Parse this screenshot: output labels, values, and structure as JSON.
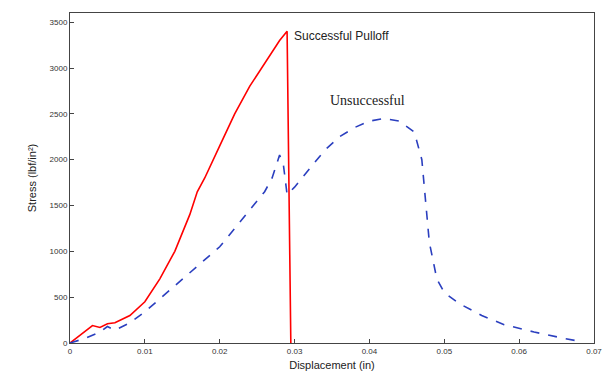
{
  "chart_data": {
    "type": "line",
    "x_label": "Displacement (in)",
    "y_label": "Stress (lbf/in²)",
    "xlim": [
      0,
      0.07
    ],
    "xticks": [
      0,
      0.01,
      0.02,
      0.03,
      0.04,
      0.05,
      0.06,
      0.07
    ],
    "ylim": [
      0,
      3600
    ],
    "yticks": [
      0,
      500,
      1000,
      1500,
      2000,
      2500,
      3000,
      3500
    ],
    "grid": false,
    "series": [
      {
        "name": "Successful Pulloff",
        "color": "#ff0000",
        "line_style": "solid",
        "x": [
          0,
          0.002,
          0.003,
          0.004,
          0.005,
          0.006,
          0.008,
          0.01,
          0.012,
          0.014,
          0.016,
          0.017,
          0.018,
          0.02,
          0.022,
          0.024,
          0.026,
          0.028,
          0.029,
          0.0292,
          0.0295
        ],
        "values": [
          0,
          120,
          190,
          170,
          210,
          220,
          300,
          450,
          700,
          1000,
          1400,
          1650,
          1800,
          2150,
          2500,
          2800,
          3050,
          3300,
          3400,
          2000,
          0
        ]
      },
      {
        "name": "Unsuccessful",
        "color": "#2b3fbf",
        "line_style": "dashed",
        "x": [
          0,
          0.002,
          0.004,
          0.005,
          0.006,
          0.008,
          0.01,
          0.012,
          0.014,
          0.016,
          0.018,
          0.02,
          0.022,
          0.024,
          0.026,
          0.027,
          0.028,
          0.0285,
          0.029,
          0.03,
          0.032,
          0.034,
          0.036,
          0.038,
          0.04,
          0.042,
          0.044,
          0.046,
          0.047,
          0.048,
          0.049,
          0.05,
          0.052,
          0.055,
          0.058,
          0.062,
          0.066,
          0.068
        ],
        "values": [
          0,
          50,
          120,
          180,
          140,
          220,
          340,
          480,
          620,
          760,
          900,
          1050,
          1250,
          1450,
          1650,
          1800,
          2050,
          1950,
          1620,
          1700,
          1900,
          2100,
          2250,
          2350,
          2420,
          2450,
          2420,
          2300,
          2000,
          1100,
          700,
          550,
          430,
          300,
          200,
          120,
          50,
          20
        ]
      }
    ],
    "annotations": [
      {
        "text": "Successful Pulloff",
        "x": 0.0297,
        "y": 3350
      },
      {
        "text": "Unsuccessful",
        "x": 0.0345,
        "y": 2650
      }
    ]
  }
}
